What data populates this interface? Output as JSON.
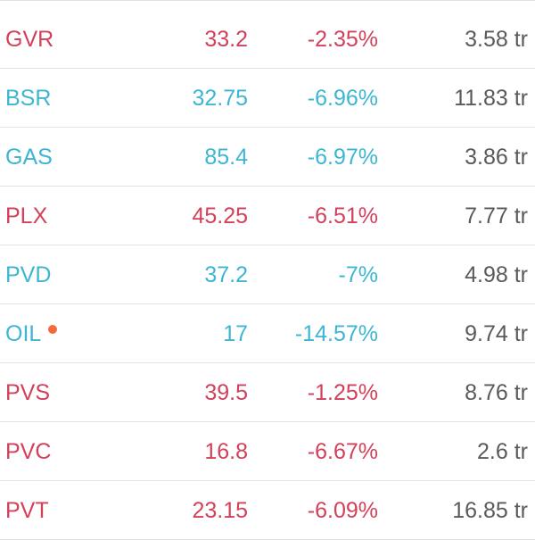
{
  "colors": {
    "down": "#d2405a",
    "floor": "#3cb6d2",
    "volume": "#5a5a5a",
    "dot": "#f26b3a",
    "divider": "#e2e2e2"
  },
  "stocks": [
    {
      "symbol": "GVR",
      "price": "33.2",
      "change": "-2.35%",
      "volume": "3.58 tr",
      "status": "down"
    },
    {
      "symbol": "BSR",
      "price": "32.75",
      "change": "-6.96%",
      "volume": "11.83 tr",
      "status": "floor"
    },
    {
      "symbol": "GAS",
      "price": "85.4",
      "change": "-6.97%",
      "volume": "3.86 tr",
      "status": "floor"
    },
    {
      "symbol": "PLX",
      "price": "45.25",
      "change": "-6.51%",
      "volume": "7.77 tr",
      "status": "down"
    },
    {
      "symbol": "PVD",
      "price": "37.2",
      "change": "-7%",
      "volume": "4.98 tr",
      "status": "floor"
    },
    {
      "symbol": "OIL",
      "price": "17",
      "change": "-14.57%",
      "volume": "9.74 tr",
      "status": "floor",
      "dot": true
    },
    {
      "symbol": "PVS",
      "price": "39.5",
      "change": "-1.25%",
      "volume": "8.76 tr",
      "status": "down"
    },
    {
      "symbol": "PVC",
      "price": "16.8",
      "change": "-6.67%",
      "volume": "2.6 tr",
      "status": "down"
    },
    {
      "symbol": "PVT",
      "price": "23.15",
      "change": "-6.09%",
      "volume": "16.85 tr",
      "status": "down"
    }
  ]
}
